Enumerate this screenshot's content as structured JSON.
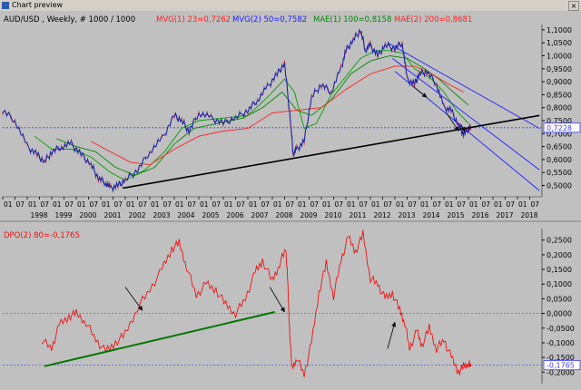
{
  "window": {
    "title": "Chart preview",
    "close_glyph": "×"
  },
  "colors": {
    "price": "#1f1fa0",
    "price_down": "#c8202a",
    "mvg1": "#2020ff",
    "mvg2": "#00a000",
    "mae1": "#008800",
    "mae2": "#ff2020",
    "channel": "#1f1fff",
    "support": "#000000",
    "dpo": "#ee1111",
    "dpo_trend": "#007700",
    "hline": "#3c3cff"
  },
  "chart_data": [
    {
      "type": "line",
      "title": "AUD/USD , Weekly, # 1000 / 1000",
      "legend": [
        {
          "label": "MVG(1) 23=0,7262",
          "color": "#ff2020"
        },
        {
          "label": "MVG(2) 50=0,7582",
          "color": "#2020ff"
        },
        {
          "label": "MAE(1) 100=0,8158",
          "color": "#008800"
        },
        {
          "label": "MAE(2) 200=0,8681",
          "color": "#ff2020"
        }
      ],
      "x_range": [
        1997.0,
        2019.0
      ],
      "ylim": [
        0.46,
        1.11
      ],
      "y_ticks": [
        "1,1000",
        "1,0500",
        "1,0000",
        "0,9500",
        "0,9000",
        "0,8500",
        "0,8000",
        "0,7500",
        "0,7000",
        "0,6500",
        "0,6000",
        "0,5500",
        "0,5000"
      ],
      "y_tick_values": [
        1.1,
        1.05,
        1.0,
        0.95,
        0.9,
        0.85,
        0.8,
        0.75,
        0.7,
        0.65,
        0.6,
        0.55,
        0.5
      ],
      "current_value": 0.7228,
      "current_label": "0,7228",
      "month_labels": [
        "01",
        "07"
      ],
      "year_labels": [
        "1998",
        "1999",
        "2000",
        "2001",
        "2002",
        "2003",
        "2004",
        "2005",
        "2006",
        "2007",
        "2008",
        "2009",
        "2010",
        "2011",
        "2012",
        "2013",
        "2014",
        "2015",
        "2016",
        "2017",
        "2018"
      ],
      "series": [
        {
          "key": "price",
          "x": [
            1997.0,
            1997.5,
            1998.0,
            1998.4,
            1998.7,
            1999.0,
            1999.4,
            1999.8,
            2000.2,
            2000.6,
            2000.9,
            2001.2,
            2001.4,
            2001.7,
            2002.0,
            2002.5,
            2003.0,
            2003.5,
            2004.0,
            2004.3,
            2004.6,
            2005.0,
            2005.5,
            2006.0,
            2006.5,
            2007.0,
            2007.4,
            2007.8,
            2008.2,
            2008.5,
            2008.75,
            2008.85,
            2009.0,
            2009.3,
            2009.6,
            2010.0,
            2010.4,
            2010.8,
            2011.0,
            2011.3,
            2011.6,
            2011.8,
            2012.0,
            2012.3,
            2012.6,
            2013.0,
            2013.3,
            2013.5,
            2013.8,
            2014.0,
            2014.3,
            2014.7,
            2015.0,
            2015.3,
            2015.6,
            2015.8,
            2016.0,
            2016.1
          ],
          "y": [
            0.79,
            0.75,
            0.65,
            0.62,
            0.59,
            0.63,
            0.65,
            0.66,
            0.62,
            0.58,
            0.53,
            0.51,
            0.49,
            0.5,
            0.52,
            0.56,
            0.63,
            0.68,
            0.77,
            0.75,
            0.71,
            0.78,
            0.76,
            0.74,
            0.76,
            0.79,
            0.83,
            0.88,
            0.93,
            0.97,
            0.74,
            0.62,
            0.64,
            0.67,
            0.84,
            0.89,
            0.86,
            0.95,
            1.02,
            1.06,
            1.1,
            1.02,
            1.04,
            1.0,
            1.04,
            1.03,
            1.05,
            0.91,
            0.89,
            0.93,
            0.94,
            0.89,
            0.8,
            0.79,
            0.73,
            0.7,
            0.72,
            0.72
          ]
        },
        {
          "key": "mvg2",
          "x": [
            1998.3,
            1999.0,
            1999.8,
            2000.6,
            2001.4,
            2002.0,
            2002.8,
            2003.6,
            2004.3,
            2005.0,
            2006.0,
            2007.0,
            2007.8,
            2008.5,
            2008.9,
            2009.3,
            2009.8,
            2010.4,
            2011.0,
            2011.6,
            2012.2,
            2012.8,
            2013.3,
            2013.8,
            2014.5,
            2015.0,
            2015.5,
            2016.0
          ],
          "y": [
            0.69,
            0.64,
            0.64,
            0.61,
            0.55,
            0.52,
            0.56,
            0.63,
            0.72,
            0.75,
            0.76,
            0.77,
            0.84,
            0.91,
            0.86,
            0.72,
            0.74,
            0.85,
            0.92,
            0.99,
            1.02,
            1.02,
            1.01,
            0.95,
            0.91,
            0.86,
            0.79,
            0.74
          ]
        },
        {
          "key": "mae1",
          "x": [
            1999.2,
            2000.0,
            2000.8,
            2001.6,
            2002.4,
            2003.2,
            2004.0,
            2004.8,
            2005.8,
            2006.8,
            2007.6,
            2008.4,
            2009.0,
            2009.6,
            2010.4,
            2011.2,
            2012.0,
            2012.8,
            2013.5,
            2014.2,
            2014.8,
            2015.5,
            2016.0
          ],
          "y": [
            0.68,
            0.65,
            0.63,
            0.57,
            0.54,
            0.57,
            0.66,
            0.72,
            0.74,
            0.76,
            0.8,
            0.86,
            0.79,
            0.77,
            0.83,
            0.93,
            0.98,
            1.0,
            0.99,
            0.95,
            0.91,
            0.85,
            0.81
          ]
        },
        {
          "key": "mae2",
          "x": [
            2000.6,
            2001.4,
            2002.2,
            2003.0,
            2004.0,
            2005.0,
            2006.0,
            2007.0,
            2008.0,
            2009.0,
            2010.0,
            2011.0,
            2012.0,
            2013.0,
            2013.8,
            2014.5,
            2015.2,
            2015.8
          ],
          "y": [
            0.67,
            0.63,
            0.59,
            0.58,
            0.64,
            0.69,
            0.71,
            0.72,
            0.78,
            0.79,
            0.8,
            0.87,
            0.93,
            0.96,
            0.96,
            0.93,
            0.89,
            0.86
          ]
        }
      ],
      "channel_lines": [
        {
          "x": [
            2012.7,
            2018.9
          ],
          "y": [
            1.05,
            0.72
          ]
        },
        {
          "x": [
            2012.9,
            2018.9
          ],
          "y": [
            0.99,
            0.56
          ]
        },
        {
          "x": [
            2013.0,
            2018.9
          ],
          "y": [
            0.94,
            0.48
          ]
        }
      ],
      "support_line": {
        "x": [
          2001.9,
          2018.9
        ],
        "y": [
          0.49,
          0.77
        ]
      },
      "arrows": [
        {
          "from": [
            2013.7,
            0.885
          ],
          "to": [
            2014.3,
            0.84
          ]
        },
        {
          "from": [
            2015.1,
            0.78
          ],
          "to": [
            2015.6,
            0.71
          ]
        },
        {
          "from": [
            2015.7,
            0.735
          ],
          "to": [
            2015.85,
            0.708
          ]
        }
      ]
    },
    {
      "type": "line",
      "title": "DPO(2) 80=-0,1765",
      "x_range": [
        1997.0,
        2019.0
      ],
      "ylim": [
        -0.23,
        0.28
      ],
      "y_ticks": [
        "0,2500",
        "0,2000",
        "0,1500",
        "0,1000",
        "0,0500",
        "0,0000",
        "-0,0500",
        "-0,1000",
        "-0,1500",
        "-0,2000"
      ],
      "y_tick_values": [
        0.25,
        0.2,
        0.15,
        0.1,
        0.05,
        0.0,
        -0.05,
        -0.1,
        -0.15,
        -0.2
      ],
      "current_value": -0.1765,
      "current_label": "-0,1765",
      "series": [
        {
          "key": "dpo",
          "x": [
            1998.6,
            1999.0,
            1999.3,
            1999.7,
            2000.0,
            2000.4,
            2000.8,
            2001.2,
            2001.6,
            2002.0,
            2002.5,
            2003.0,
            2003.5,
            2003.9,
            2004.2,
            2004.5,
            2004.9,
            2005.3,
            2005.7,
            2006.1,
            2006.5,
            2006.9,
            2007.3,
            2007.6,
            2008.0,
            2008.3,
            2008.55,
            2008.62,
            2008.7,
            2008.8,
            2009.0,
            2009.3,
            2009.6,
            2009.9,
            2010.2,
            2010.5,
            2010.8,
            2011.1,
            2011.4,
            2011.7,
            2012.0,
            2012.3,
            2012.6,
            2012.9,
            2013.2,
            2013.4,
            2013.6,
            2013.9,
            2014.1,
            2014.4,
            2014.7,
            2015.0,
            2015.3,
            2015.6,
            2015.8,
            2016.0,
            2016.1
          ],
          "y": [
            -0.09,
            -0.12,
            -0.04,
            -0.01,
            0.0,
            -0.03,
            -0.09,
            -0.13,
            -0.1,
            -0.07,
            0.02,
            0.08,
            0.15,
            0.22,
            0.24,
            0.16,
            0.06,
            0.1,
            0.08,
            0.03,
            0.0,
            0.05,
            0.14,
            0.18,
            0.11,
            0.17,
            0.22,
            0.12,
            -0.05,
            -0.19,
            -0.15,
            -0.21,
            -0.1,
            0.07,
            0.17,
            0.06,
            0.18,
            0.26,
            0.21,
            0.27,
            0.12,
            0.1,
            0.05,
            0.07,
            0.01,
            -0.03,
            -0.12,
            -0.06,
            -0.11,
            -0.05,
            -0.12,
            -0.09,
            -0.15,
            -0.2,
            -0.18,
            -0.17,
            -0.18
          ]
        }
      ],
      "trend_line": {
        "x": [
          1998.7,
          2008.1
        ],
        "y": [
          -0.18,
          0.005
        ]
      },
      "zero_line": 0.0,
      "arrows": [
        {
          "from": [
            2002.0,
            0.09
          ],
          "to": [
            2002.7,
            0.01
          ]
        },
        {
          "from": [
            2007.9,
            0.09
          ],
          "to": [
            2008.5,
            0.005
          ]
        },
        {
          "from": [
            2012.7,
            -0.12
          ],
          "to": [
            2013.0,
            -0.03
          ]
        }
      ]
    }
  ]
}
